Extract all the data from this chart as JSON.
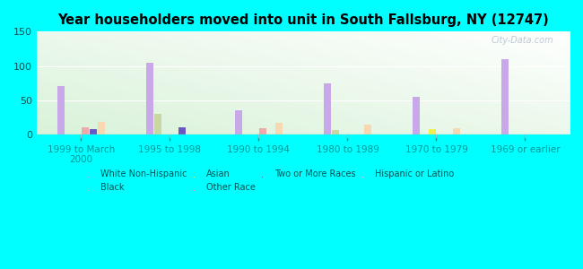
{
  "title": "Year householders moved into unit in South Fallsburg, NY (12747)",
  "categories": [
    "1999 to March\n2000",
    "1995 to 1998",
    "1990 to 1994",
    "1980 to 1989",
    "1970 to 1979",
    "1969 or earlier"
  ],
  "series": {
    "White Non-Hispanic": [
      70,
      105,
      35,
      75,
      55,
      110
    ],
    "Black": [
      0,
      30,
      0,
      7,
      0,
      0
    ],
    "Asian": [
      0,
      0,
      0,
      0,
      8,
      0
    ],
    "Other Race": [
      10,
      0,
      9,
      0,
      0,
      0
    ],
    "Two or More Races": [
      8,
      10,
      0,
      0,
      0,
      0
    ],
    "Hispanic or Latino": [
      18,
      0,
      17,
      15,
      9,
      0
    ]
  },
  "colors": {
    "White Non-Hispanic": "#c8a8e8",
    "Black": "#c8d8a0",
    "Asian": "#f0f050",
    "Other Race": "#f0a8a8",
    "Two or More Races": "#6858c0",
    "Hispanic or Latino": "#f8d8b0"
  },
  "ylim": [
    0,
    150
  ],
  "yticks": [
    0,
    50,
    100,
    150
  ],
  "background_color": "#00ffff",
  "watermark": "City-Data.com",
  "legend_order": [
    [
      "White Non-Hispanic",
      "Black",
      "Asian",
      "Other Race"
    ],
    [
      "Two or More Races",
      "Hispanic or Latino"
    ]
  ]
}
